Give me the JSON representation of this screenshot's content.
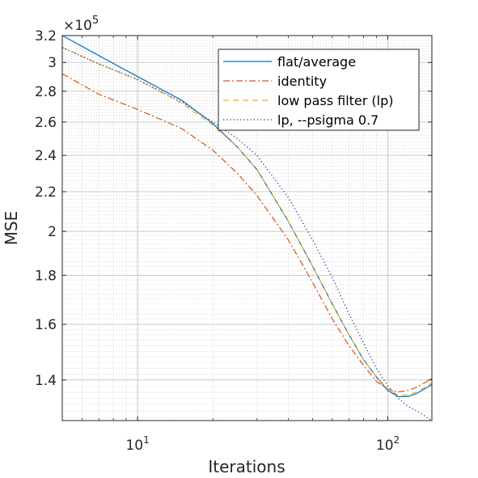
{
  "chart_data": {
    "type": "line",
    "xlabel": "Iterations",
    "ylabel": "MSE",
    "y_multiplier": "×10",
    "y_multiplier_exp": "5",
    "xscale": "log",
    "yscale": "log",
    "xlim": [
      5,
      150
    ],
    "ylim": [
      1.27,
      3.2
    ],
    "grid": true,
    "minor_grid": true,
    "legend_position": "top-right",
    "x_ticks": [
      {
        "value": 10,
        "base": "10",
        "exp": "1"
      },
      {
        "value": 100,
        "base": "10",
        "exp": "2"
      }
    ],
    "y_ticks": [
      {
        "value": 1.4,
        "label": "1.4"
      },
      {
        "value": 1.6,
        "label": "1.6"
      },
      {
        "value": 1.8,
        "label": "1.8"
      },
      {
        "value": 2.0,
        "label": "2"
      },
      {
        "value": 2.2,
        "label": "2.2"
      },
      {
        "value": 2.4,
        "label": "2.4"
      },
      {
        "value": 2.6,
        "label": "2.6"
      },
      {
        "value": 2.8,
        "label": "2.8"
      },
      {
        "value": 3.0,
        "label": "3"
      },
      {
        "value": 3.2,
        "label": "3.2"
      }
    ],
    "series": [
      {
        "name": "flat/average",
        "color": "#0072bd",
        "dash": "solid",
        "x": [
          5,
          7,
          10,
          15,
          20,
          25,
          30,
          40,
          50,
          60,
          70,
          80,
          90,
          100,
          110,
          120,
          130,
          140,
          150
        ],
        "y": [
          3.2,
          3.05,
          2.9,
          2.74,
          2.59,
          2.45,
          2.32,
          2.05,
          1.84,
          1.68,
          1.56,
          1.47,
          1.41,
          1.365,
          1.345,
          1.345,
          1.355,
          1.37,
          1.385
        ]
      },
      {
        "name": "identity",
        "color": "#d95319",
        "dash": "8,3,2,3",
        "x": [
          5,
          7,
          10,
          15,
          20,
          25,
          30,
          40,
          50,
          60,
          70,
          80,
          90,
          100,
          110,
          120,
          130,
          140,
          150
        ],
        "y": [
          2.92,
          2.78,
          2.68,
          2.56,
          2.43,
          2.3,
          2.18,
          1.96,
          1.77,
          1.62,
          1.52,
          1.45,
          1.395,
          1.37,
          1.36,
          1.365,
          1.375,
          1.39,
          1.405
        ]
      },
      {
        "name": "low pass filter (lp)",
        "color": "#edb120",
        "dash": "7,5",
        "x": [
          5,
          7,
          10,
          15,
          20,
          25,
          30,
          40,
          50,
          60,
          70,
          80,
          90,
          100,
          110,
          120,
          130,
          140,
          150
        ],
        "y": [
          3.11,
          2.99,
          2.88,
          2.72,
          2.58,
          2.45,
          2.32,
          2.05,
          1.84,
          1.68,
          1.56,
          1.47,
          1.41,
          1.37,
          1.35,
          1.35,
          1.36,
          1.375,
          1.39
        ]
      },
      {
        "name": "lp, --psigma 0.7",
        "color": "#1f1f8f",
        "dash": "1.2,3",
        "x": [
          5,
          7,
          10,
          15,
          20,
          25,
          30,
          40,
          50,
          60,
          70,
          80,
          90,
          100,
          110,
          120,
          130,
          140,
          150
        ],
        "y": [
          3.11,
          2.99,
          2.88,
          2.73,
          2.6,
          2.5,
          2.4,
          2.17,
          1.96,
          1.79,
          1.64,
          1.53,
          1.44,
          1.38,
          1.34,
          1.315,
          1.3,
          1.285,
          1.27
        ]
      }
    ]
  }
}
